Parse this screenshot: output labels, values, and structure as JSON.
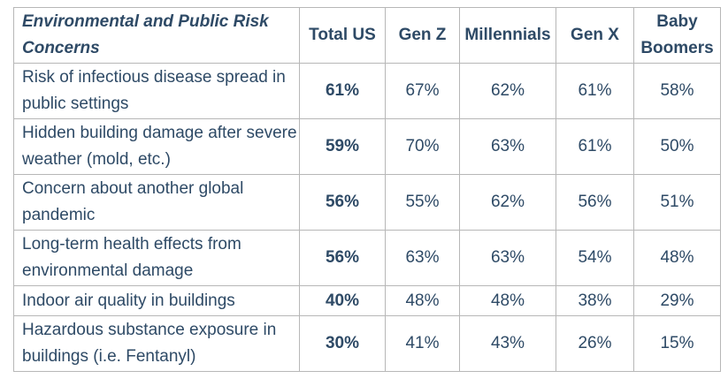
{
  "headers": [
    "Environmental and Public Risk Concerns",
    "Total US",
    "Gen Z",
    "Millennials",
    "Gen X",
    "Baby Boomers"
  ],
  "rows": [
    {
      "concern": "Risk of infectious disease spread in public settings",
      "total": "61%",
      "gen_z": "67%",
      "millennials": "62%",
      "gen_x": "61%",
      "boomers": "58%"
    },
    {
      "concern": "Hidden building damage after severe weather (mold, etc.)",
      "total": "59%",
      "gen_z": "70%",
      "millennials": "63%",
      "gen_x": "61%",
      "boomers": "50%"
    },
    {
      "concern": "Concern about another global pandemic",
      "total": "56%",
      "gen_z": "55%",
      "millennials": "62%",
      "gen_x": "56%",
      "boomers": "51%"
    },
    {
      "concern": "Long-term health effects from environmental damage",
      "total": "56%",
      "gen_z": "63%",
      "millennials": "63%",
      "gen_x": "54%",
      "boomers": "48%"
    },
    {
      "concern": "Indoor air quality in buildings",
      "total": "40%",
      "gen_z": "48%",
      "millennials": "48%",
      "gen_x": "38%",
      "boomers": "29%"
    },
    {
      "concern": "Hazardous substance exposure in buildings (i.e. Fentanyl)",
      "total": "30%",
      "gen_z": "41%",
      "millennials": "43%",
      "gen_x": "26%",
      "boomers": "15%"
    }
  ],
  "colors": {
    "text": "#2e4a66",
    "border": "#b7b7b7"
  }
}
